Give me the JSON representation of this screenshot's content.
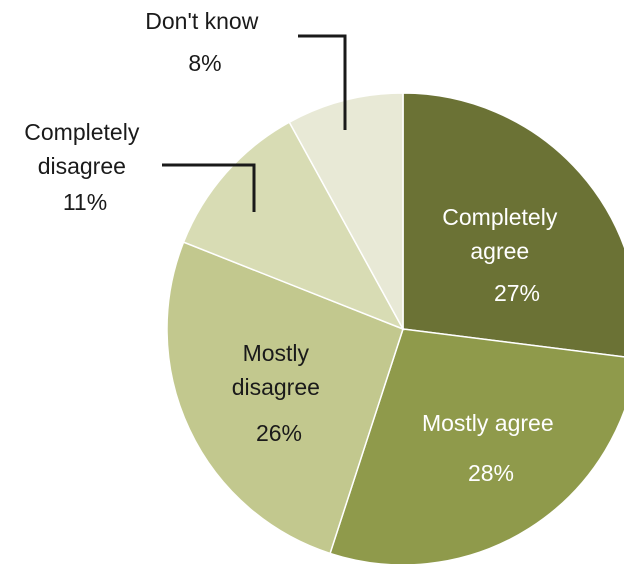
{
  "chart_data": {
    "type": "pie",
    "start_angle_deg": 0,
    "direction": "clockwise",
    "slices": [
      {
        "label_lines": [
          "Completely",
          "agree"
        ],
        "value": 27,
        "value_label": "27%",
        "color": "#6b7235"
      },
      {
        "label_lines": [
          "Mostly agree"
        ],
        "value": 28,
        "value_label": "28%",
        "color": "#8f9a4b"
      },
      {
        "label_lines": [
          "Mostly",
          "disagree"
        ],
        "value": 26,
        "value_label": "26%",
        "color": "#c2c88e"
      },
      {
        "label_lines": [
          "Completely",
          "disagree"
        ],
        "value": 11,
        "value_label": "11%",
        "color": "#d8dcb4"
      },
      {
        "label_lines": [
          "Don't know"
        ],
        "value": 8,
        "value_label": "8%",
        "color": "#e8e9d6"
      }
    ]
  }
}
